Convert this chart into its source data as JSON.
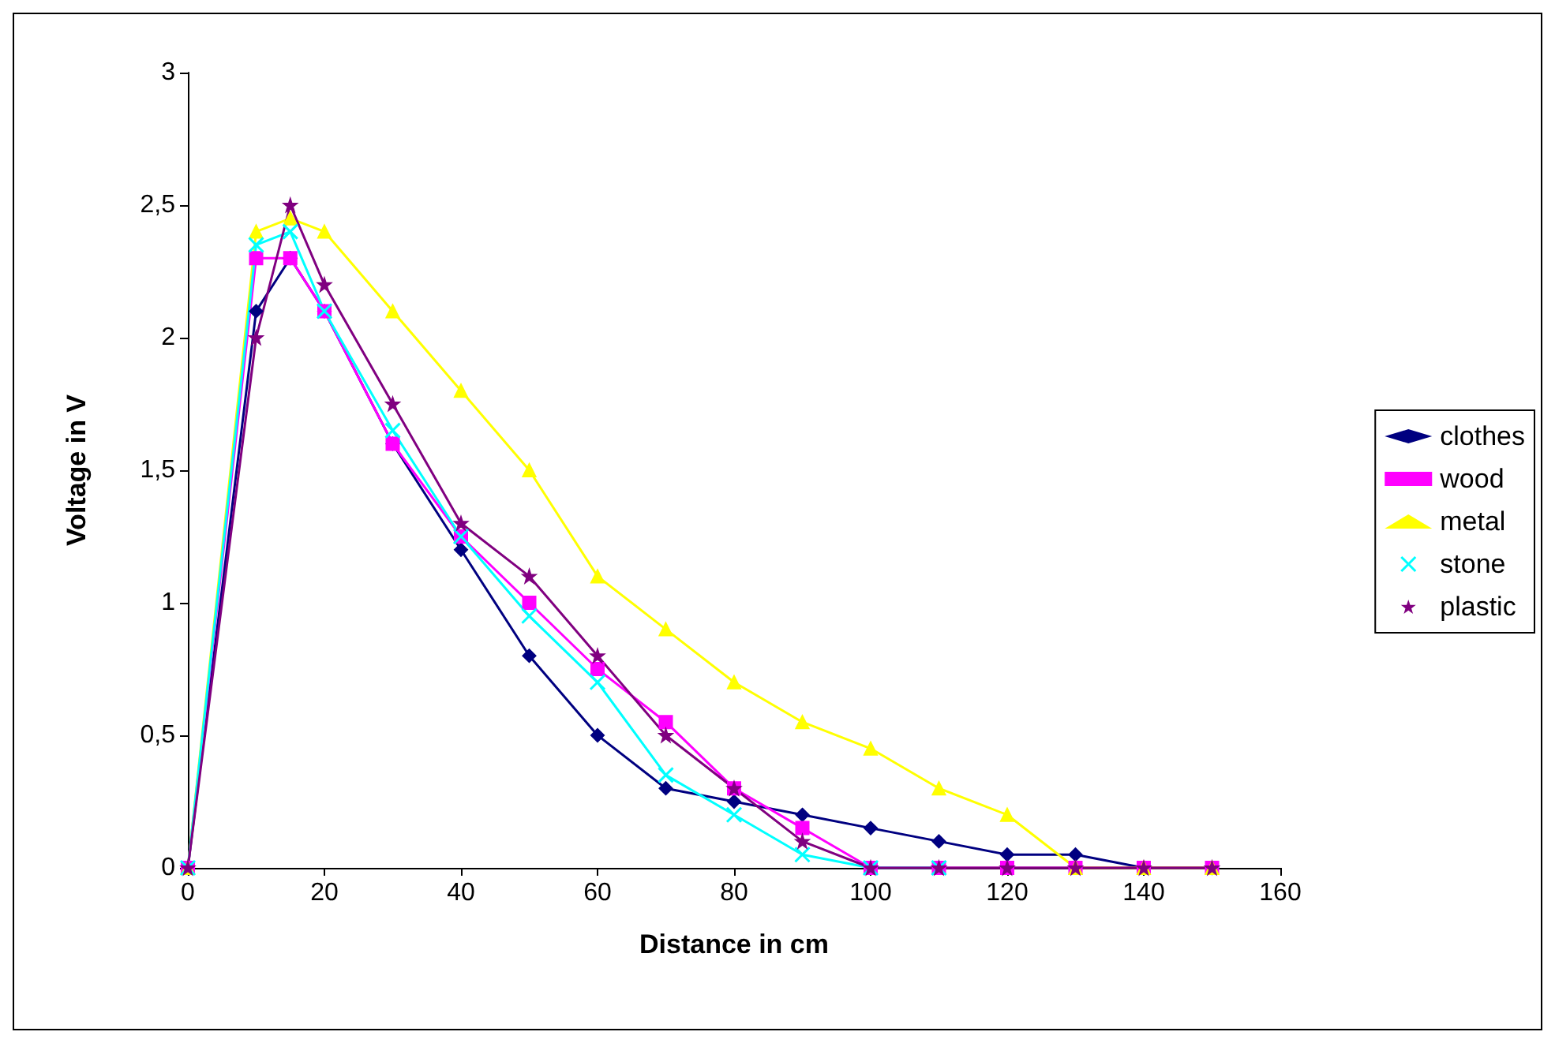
{
  "chart_data": {
    "type": "line",
    "xlabel": "Distance in cm",
    "ylabel": "Voltage in V",
    "x": [
      0,
      10,
      15,
      20,
      30,
      40,
      50,
      60,
      70,
      80,
      90,
      100,
      110,
      120,
      130,
      140,
      150
    ],
    "series": [
      {
        "name": "clothes",
        "color": "#000080",
        "marker": "diamond",
        "values": [
          0,
          2.1,
          2.3,
          2.1,
          1.6,
          1.2,
          0.8,
          0.5,
          0.3,
          0.25,
          0.2,
          0.15,
          0.1,
          0.05,
          0.05,
          0,
          0
        ]
      },
      {
        "name": "wood",
        "color": "#ff00ff",
        "marker": "square",
        "values": [
          0,
          2.3,
          2.3,
          2.1,
          1.6,
          1.25,
          1.0,
          0.75,
          0.55,
          0.3,
          0.15,
          0,
          0,
          0,
          0,
          0,
          0
        ]
      },
      {
        "name": "metal",
        "color": "#ffff00",
        "marker": "triangle",
        "values": [
          0,
          2.4,
          2.45,
          2.4,
          2.1,
          1.8,
          1.5,
          1.1,
          0.9,
          0.7,
          0.55,
          0.45,
          0.3,
          0.2,
          0,
          0,
          0
        ]
      },
      {
        "name": "stone",
        "color": "#00ffff",
        "marker": "cross",
        "values": [
          0,
          2.35,
          2.4,
          2.1,
          1.65,
          1.25,
          0.95,
          0.7,
          0.35,
          0.2,
          0.05,
          0,
          0,
          null,
          null,
          null,
          null
        ]
      },
      {
        "name": "plastic",
        "color": "#800080",
        "marker": "star",
        "values": [
          0,
          2.0,
          2.5,
          2.2,
          1.75,
          1.3,
          1.1,
          0.8,
          0.5,
          0.3,
          0.1,
          0,
          0,
          0,
          0,
          0,
          0
        ]
      }
    ],
    "xlim": [
      0,
      160
    ],
    "xticks": [
      0,
      20,
      40,
      60,
      80,
      100,
      120,
      140,
      160
    ],
    "ylim": [
      0,
      3
    ],
    "yticks": [
      0,
      {
        "value": 0.5,
        "label": "0,5"
      },
      1,
      {
        "value": 1.5,
        "label": "1,5"
      },
      2,
      {
        "value": 2.5,
        "label": "2,5"
      },
      3
    ],
    "grid": false,
    "legend": "right",
    "line_style": "solid"
  }
}
